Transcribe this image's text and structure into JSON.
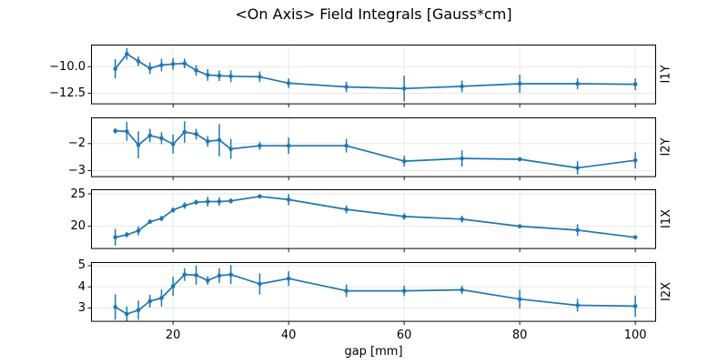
{
  "colors": {
    "line": "#1f77b4",
    "grid": "#e8e8e8",
    "spine": "#000000",
    "tick": "#000000",
    "text": "#000000",
    "background": "#ffffff"
  },
  "chart_data": {
    "type": "line",
    "title": "<On Axis> Field Integrals [Gauss*cm]",
    "xlabel": "gap [mm]",
    "grid": true,
    "legend_position": "none",
    "marker": "dot",
    "error_bars": true,
    "x": [
      10,
      12,
      14,
      16,
      18,
      20,
      22,
      24,
      26,
      28,
      30,
      35,
      40,
      50,
      60,
      70,
      80,
      90,
      100
    ],
    "xlim": [
      5.8,
      103.6
    ],
    "xticks": [
      20,
      40,
      60,
      80,
      100
    ],
    "xtick_labels": [
      "20",
      "40",
      "60",
      "80",
      "100"
    ],
    "subplots": [
      {
        "ylabel": "I1Y",
        "ylim": [
          -13.53,
          -7.93
        ],
        "yticks": [
          -10.0,
          -12.5
        ],
        "ytick_labels": [
          "−10.0",
          "−12.5"
        ],
        "values": [
          -10.2,
          -8.8,
          -9.5,
          -10.15,
          -9.85,
          -9.75,
          -9.7,
          -10.35,
          -10.78,
          -10.85,
          -10.9,
          -10.95,
          -11.55,
          -11.9,
          -12.05,
          -11.85,
          -11.6,
          -11.6,
          -11.65
        ],
        "errors": [
          0.9,
          0.55,
          0.45,
          0.55,
          0.6,
          0.55,
          0.45,
          0.5,
          0.55,
          0.5,
          0.55,
          0.5,
          0.45,
          0.5,
          1.2,
          0.55,
          0.85,
          0.5,
          0.55
        ]
      },
      {
        "ylabel": "I2Y",
        "ylim": [
          -3.24,
          -1.03
        ],
        "yticks": [
          -2,
          -3
        ],
        "ytick_labels": [
          "−2",
          "−3"
        ],
        "values": [
          -1.53,
          -1.55,
          -2.05,
          -1.7,
          -1.8,
          -2.02,
          -1.57,
          -1.65,
          -1.92,
          -1.87,
          -2.2,
          -2.08,
          -2.08,
          -2.08,
          -2.65,
          -2.55,
          -2.58,
          -2.9,
          -2.62
        ],
        "errors": [
          0.1,
          0.35,
          0.5,
          0.25,
          0.22,
          0.35,
          0.4,
          0.2,
          0.2,
          0.6,
          0.37,
          0.15,
          0.3,
          0.25,
          0.2,
          0.3,
          0.08,
          0.25,
          0.3
        ]
      },
      {
        "ylabel": "I1X",
        "ylim": [
          16.5,
          25.7
        ],
        "yticks": [
          25,
          20
        ],
        "ytick_labels": [
          "25",
          "20"
        ],
        "values": [
          18.3,
          18.7,
          19.3,
          20.7,
          21.2,
          22.5,
          23.2,
          23.7,
          23.8,
          23.8,
          23.9,
          24.6,
          24.1,
          22.6,
          21.5,
          21.1,
          20.0,
          19.4,
          18.3
        ],
        "errors": [
          1.3,
          0.4,
          0.7,
          0.35,
          0.4,
          0.4,
          0.5,
          0.4,
          0.75,
          0.65,
          0.4,
          0.12,
          0.85,
          0.6,
          0.5,
          0.55,
          0.15,
          0.9,
          0.15
        ]
      },
      {
        "ylabel": "I2X",
        "ylim": [
          2.35,
          5.17
        ],
        "yticks": [
          5,
          4,
          3
        ],
        "ytick_labels": [
          "5",
          "4",
          "3"
        ],
        "values": [
          3.05,
          2.72,
          2.9,
          3.32,
          3.47,
          4.03,
          4.58,
          4.55,
          4.3,
          4.53,
          4.58,
          4.14,
          4.39,
          3.81,
          3.81,
          3.86,
          3.42,
          3.13,
          3.09
        ],
        "errors": [
          0.6,
          0.35,
          0.45,
          0.3,
          0.4,
          0.45,
          0.3,
          0.45,
          0.2,
          0.35,
          0.45,
          0.5,
          0.35,
          0.3,
          0.25,
          0.2,
          0.45,
          0.3,
          0.5
        ]
      }
    ]
  }
}
